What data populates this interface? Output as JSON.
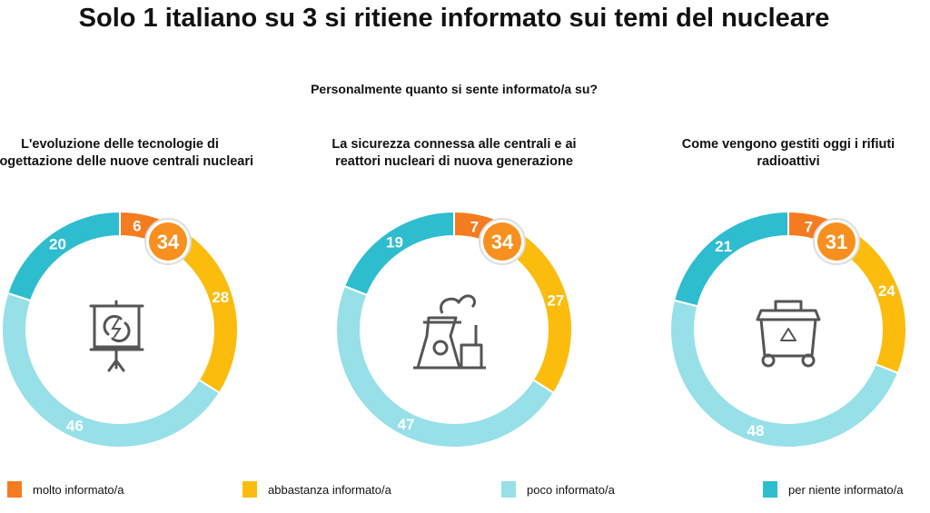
{
  "title": "Solo 1 italiano su 3 si ritiene informato sui temi del nucleare",
  "subtitle": "Personalmente quanto si sente informato/a su?",
  "legend": [
    {
      "label": "molto informato/a",
      "color": "#F47B20"
    },
    {
      "label": "abbastanza informato/a",
      "color": "#FBBC0E"
    },
    {
      "label": "poco informato/a",
      "color": "#97E0E8"
    },
    {
      "label": "per niente informato/a",
      "color": "#2EBDCE"
    }
  ],
  "chart_data": [
    {
      "type": "pie",
      "title": "L'evoluzione delle tecnologie di progettazione delle nuove centrali nucleari",
      "categories": [
        "molto informato/a",
        "abbastanza informato/a",
        "poco informato/a",
        "per niente informato/a"
      ],
      "values": [
        6,
        28,
        46,
        20
      ],
      "highlight": "34",
      "icon": "presentation-board-energy-icon"
    },
    {
      "type": "pie",
      "title": "La sicurezza connessa alle centrali e ai reattori nucleari di nuova generazione",
      "categories": [
        "molto informato/a",
        "abbastanza informato/a",
        "poco informato/a",
        "per niente informato/a"
      ],
      "values": [
        7,
        27,
        47,
        19
      ],
      "highlight": "34",
      "icon": "nuclear-plant-icon"
    },
    {
      "type": "pie",
      "title": "Come vengono gestiti oggi i rifiuti radioattivi",
      "categories": [
        "molto informato/a",
        "abbastanza informato/a",
        "poco informato/a",
        "per niente informato/a"
      ],
      "values": [
        7,
        24,
        48,
        21
      ],
      "highlight": "31",
      "icon": "recycling-bin-icon"
    }
  ]
}
